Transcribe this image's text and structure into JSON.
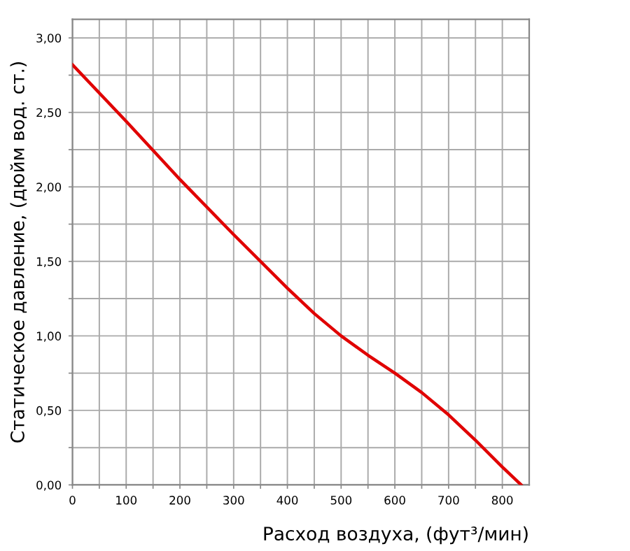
{
  "chart_data": {
    "type": "line",
    "xlabel": "Расход воздуха, (фут³/мин)",
    "ylabel": "Статическое давление, (дюйм вод. ст.)",
    "series": [
      {
        "color": "#e00000",
        "x": [
          0,
          100,
          200,
          300,
          400,
          450,
          500,
          550,
          600,
          650,
          700,
          750,
          800,
          835
        ],
        "values": [
          2.82,
          2.44,
          2.05,
          1.68,
          1.32,
          1.15,
          1.0,
          0.87,
          0.75,
          0.62,
          0.47,
          0.3,
          0.12,
          0
        ]
      }
    ],
    "xlim": [
      0,
      850
    ],
    "ylim": [
      0,
      3.125
    ],
    "xticks": [
      0,
      {
        "value": 50,
        "label": null
      },
      100,
      {
        "value": 150,
        "label": null
      },
      200,
      {
        "value": 250,
        "label": null
      },
      300,
      {
        "value": 350,
        "label": null
      },
      400,
      {
        "value": 450,
        "label": null
      },
      500,
      {
        "value": 550,
        "label": null
      },
      600,
      {
        "value": 650,
        "label": null
      },
      700,
      {
        "value": 750,
        "label": null
      },
      800
    ],
    "yticks": [
      {
        "value": 0,
        "label": "0,00"
      },
      {
        "value": 0.25,
        "label": null
      },
      {
        "value": 0.5,
        "label": "0,50"
      },
      {
        "value": 0.75,
        "label": null
      },
      {
        "value": 1.0,
        "label": "1,00"
      },
      {
        "value": 1.25,
        "label": null
      },
      {
        "value": 1.5,
        "label": "1,50"
      },
      {
        "value": 1.75,
        "label": null
      },
      {
        "value": 2.0,
        "label": "2,00"
      },
      {
        "value": 2.25,
        "label": null
      },
      {
        "value": 2.5,
        "label": "2,50"
      },
      {
        "value": 2.75,
        "label": null
      },
      {
        "value": 3.0,
        "label": "3,00"
      }
    ],
    "grid": true,
    "marker": "none",
    "line_style": "solid"
  }
}
